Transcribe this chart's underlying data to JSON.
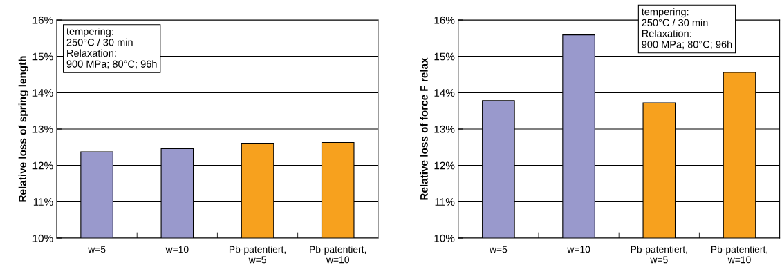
{
  "chart_data": [
    {
      "type": "bar",
      "ylabel": "Relative loss of spring length",
      "categories": [
        "w=5",
        "w=10",
        "Pb-patentiert,\nw=5",
        "Pb-patentiert,\nw=10"
      ],
      "values": [
        12.37,
        12.46,
        12.61,
        12.63
      ],
      "colors": [
        "#9999cc",
        "#9999cc",
        "#f7a11e",
        "#f7a11e"
      ],
      "ylim": [
        10,
        16
      ],
      "yticks": [
        {
          "value": 10,
          "label": "10%"
        },
        {
          "value": 11,
          "label": "11%"
        },
        {
          "value": 12,
          "label": "12%"
        },
        {
          "value": 13,
          "label": "13%"
        },
        {
          "value": 14,
          "label": "14%"
        },
        {
          "value": 15,
          "label": "15%"
        },
        {
          "value": 16,
          "label": "16%"
        }
      ],
      "grid": "y",
      "annotations": [
        "tempering:\n250°C / 30 min\nRelaxation:\n900 MPa; 80°C; 96h"
      ]
    },
    {
      "type": "bar",
      "ylabel": "Relative loss of force F relax",
      "categories": [
        "w=5",
        "w=10",
        "Pb-patentiert,\nw=5",
        "Pb-patentiert,\nw=10"
      ],
      "values": [
        13.78,
        15.59,
        13.72,
        14.56
      ],
      "colors": [
        "#9999cc",
        "#9999cc",
        "#f7a11e",
        "#f7a11e"
      ],
      "ylim": [
        10,
        16
      ],
      "yticks": [
        {
          "value": 10,
          "label": "10%"
        },
        {
          "value": 11,
          "label": "11%"
        },
        {
          "value": 12,
          "label": "12%"
        },
        {
          "value": 13,
          "label": "13%"
        },
        {
          "value": 14,
          "label": "14%"
        },
        {
          "value": 15,
          "label": "15%"
        },
        {
          "value": 16,
          "label": "16%"
        }
      ],
      "grid": "y",
      "annotations": [
        "tempering:\n250°C / 30 min\nRelaxation:\n900 MPa; 80°C; 96h"
      ]
    }
  ]
}
